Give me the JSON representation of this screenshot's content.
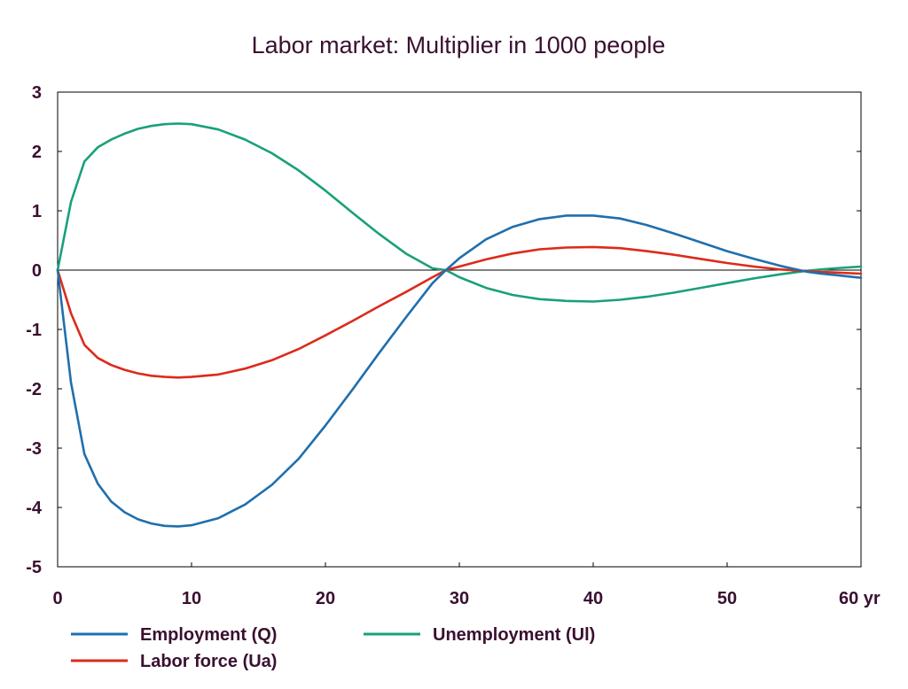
{
  "chart_data": {
    "type": "line",
    "title": "Labor market: Multiplier in 1000 people",
    "xlabel": "",
    "ylabel": "",
    "x_unit": "yr",
    "xlim": [
      0,
      60
    ],
    "ylim": [
      -5,
      3
    ],
    "xticks": [
      0,
      10,
      20,
      30,
      40,
      50,
      60
    ],
    "xtick_labels": [
      "0",
      "10",
      "20",
      "30",
      "40",
      "50",
      "60 yr"
    ],
    "yticks": [
      3,
      2,
      1,
      0,
      -1,
      -2,
      -3,
      -4,
      -5
    ],
    "ytick_labels": [
      "3",
      "2",
      "1",
      "0",
      "-1",
      "-2",
      "-3",
      "-4",
      "-5"
    ],
    "grid": false,
    "legend_position": "bottom",
    "x": [
      0,
      1,
      2,
      3,
      4,
      5,
      6,
      7,
      8,
      9,
      10,
      12,
      14,
      16,
      18,
      20,
      22,
      24,
      26,
      28,
      29,
      30,
      32,
      34,
      36,
      38,
      40,
      42,
      44,
      46,
      48,
      50,
      52,
      54,
      56,
      57,
      58,
      60
    ],
    "series": [
      {
        "name": "Employment (Q)",
        "color": "#1f6fad",
        "values": [
          0,
          -1.9,
          -3.1,
          -3.6,
          -3.9,
          -4.08,
          -4.2,
          -4.27,
          -4.31,
          -4.32,
          -4.3,
          -4.18,
          -3.95,
          -3.62,
          -3.18,
          -2.62,
          -2.02,
          -1.4,
          -0.8,
          -0.22,
          0.0,
          0.2,
          0.52,
          0.73,
          0.86,
          0.92,
          0.92,
          0.87,
          0.76,
          0.62,
          0.47,
          0.32,
          0.19,
          0.07,
          -0.03,
          -0.06,
          -0.08,
          -0.13
        ]
      },
      {
        "name": "Unemployment (Ul)",
        "color": "#19a07b",
        "values": [
          0,
          1.15,
          1.83,
          2.07,
          2.2,
          2.3,
          2.38,
          2.43,
          2.46,
          2.47,
          2.46,
          2.37,
          2.2,
          1.97,
          1.68,
          1.34,
          0.97,
          0.61,
          0.28,
          0.03,
          0.0,
          -0.12,
          -0.3,
          -0.42,
          -0.49,
          -0.52,
          -0.53,
          -0.5,
          -0.45,
          -0.38,
          -0.3,
          -0.22,
          -0.14,
          -0.07,
          -0.01,
          0.01,
          0.03,
          0.06
        ]
      },
      {
        "name": "Labor force (Ua)",
        "color": "#dd2a1b",
        "values": [
          0,
          -0.73,
          -1.26,
          -1.48,
          -1.6,
          -1.68,
          -1.74,
          -1.78,
          -1.8,
          -1.81,
          -1.8,
          -1.76,
          -1.66,
          -1.52,
          -1.33,
          -1.1,
          -0.86,
          -0.61,
          -0.37,
          -0.12,
          0.0,
          0.06,
          0.18,
          0.28,
          0.35,
          0.38,
          0.39,
          0.37,
          0.32,
          0.26,
          0.19,
          0.12,
          0.06,
          0.01,
          -0.02,
          -0.03,
          -0.04,
          -0.06
        ]
      }
    ]
  }
}
